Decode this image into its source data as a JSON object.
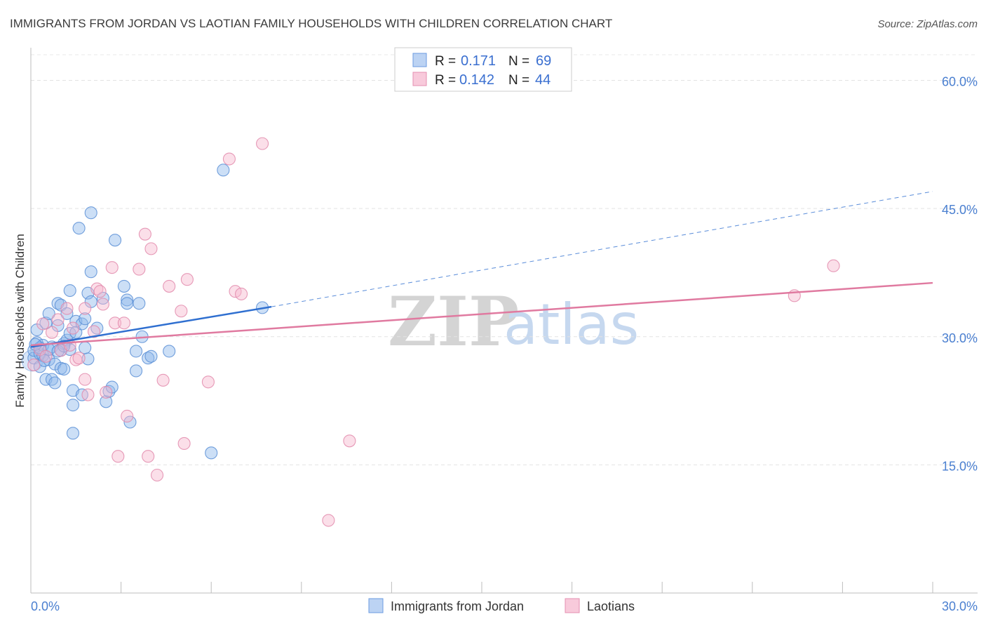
{
  "chart_data": {
    "type": "scatter",
    "title": "IMMIGRANTS FROM JORDAN VS LAOTIAN FAMILY HOUSEHOLDS WITH CHILDREN CORRELATION CHART",
    "source": "Source: ZipAtlas.com",
    "ylabel": "Family Households with Children",
    "xlabel": "",
    "xlim": [
      0,
      30
    ],
    "ylim": [
      0,
      63
    ],
    "x_tick_labels": [
      "0.0%",
      "30.0%"
    ],
    "y_ticks": [
      15,
      30,
      45,
      60
    ],
    "y_tick_labels": [
      "15.0%",
      "30.0%",
      "45.0%",
      "60.0%"
    ],
    "grid": true,
    "legend_position": "bottom-center",
    "stats_box": [
      {
        "r_label": "R =",
        "r_value": "0.171",
        "n_label": "N =",
        "n_value": "69"
      },
      {
        "r_label": "R =",
        "r_value": "0.142",
        "n_label": "N =",
        "n_value": "44"
      }
    ],
    "watermark": {
      "zip": "ZIP",
      "atlas": "atlas"
    },
    "series": [
      {
        "name": "Immigrants from Jordan",
        "color": "#8fb8ec",
        "edge": "#5b8fd6",
        "trend_color": "#2f6fd0",
        "trend": {
          "x0": 0,
          "y0": 28.8,
          "x1": 8,
          "y1": 33.5,
          "dash_to_x": 30,
          "dash_to_y": 47
        },
        "points": [
          [
            0.1,
            27.5
          ],
          [
            0.1,
            28.4
          ],
          [
            0.2,
            29.3
          ],
          [
            0.2,
            30.8
          ],
          [
            0.3,
            28.0
          ],
          [
            0.3,
            26.5
          ],
          [
            0.4,
            27.8
          ],
          [
            0.4,
            29.0
          ],
          [
            0.5,
            31.6
          ],
          [
            0.5,
            25.0
          ],
          [
            0.6,
            32.7
          ],
          [
            0.6,
            27.3
          ],
          [
            0.7,
            28.8
          ],
          [
            0.7,
            25.0
          ],
          [
            0.8,
            24.6
          ],
          [
            0.8,
            26.8
          ],
          [
            0.9,
            31.3
          ],
          [
            0.9,
            33.9
          ],
          [
            1.0,
            28.4
          ],
          [
            1.0,
            26.3
          ],
          [
            1.0,
            33.7
          ],
          [
            1.1,
            29.2
          ],
          [
            1.1,
            26.2
          ],
          [
            1.2,
            32.7
          ],
          [
            1.2,
            29.6
          ],
          [
            1.3,
            30.4
          ],
          [
            1.3,
            35.4
          ],
          [
            1.3,
            28.5
          ],
          [
            1.4,
            23.7
          ],
          [
            1.4,
            18.7
          ],
          [
            1.4,
            22.0
          ],
          [
            1.5,
            31.8
          ],
          [
            1.5,
            30.5
          ],
          [
            1.6,
            42.7
          ],
          [
            1.7,
            23.2
          ],
          [
            1.7,
            31.5
          ],
          [
            1.8,
            32.1
          ],
          [
            1.8,
            28.7
          ],
          [
            1.9,
            35.1
          ],
          [
            1.9,
            27.4
          ],
          [
            2.0,
            37.6
          ],
          [
            2.0,
            34.1
          ],
          [
            2.2,
            31.0
          ],
          [
            2.4,
            34.5
          ],
          [
            2.5,
            22.4
          ],
          [
            2.6,
            23.6
          ],
          [
            2.7,
            24.1
          ],
          [
            2.8,
            41.3
          ],
          [
            3.1,
            35.9
          ],
          [
            3.2,
            34.3
          ],
          [
            3.2,
            33.9
          ],
          [
            3.3,
            20.0
          ],
          [
            3.5,
            28.3
          ],
          [
            3.5,
            26.0
          ],
          [
            3.6,
            33.9
          ],
          [
            3.7,
            30.0
          ],
          [
            3.9,
            27.5
          ],
          [
            4.0,
            27.7
          ],
          [
            4.6,
            28.3
          ],
          [
            2.0,
            44.5
          ],
          [
            6.0,
            16.4
          ],
          [
            6.4,
            49.5
          ],
          [
            7.7,
            33.4
          ],
          [
            0.3,
            28.7
          ],
          [
            0.6,
            28.5
          ],
          [
            0.9,
            28.3
          ],
          [
            1.1,
            28.9
          ],
          [
            0.15,
            29.1
          ],
          [
            0.45,
            27.2
          ]
        ]
      },
      {
        "name": "Laotians",
        "color": "#f6b9cf",
        "edge": "#e28aab",
        "trend_color": "#e07aa0",
        "trend": {
          "x0": 0,
          "y0": 29.0,
          "x1": 30,
          "y1": 36.3
        },
        "points": [
          [
            0.1,
            26.7
          ],
          [
            0.3,
            28.5
          ],
          [
            0.4,
            31.5
          ],
          [
            0.5,
            27.7
          ],
          [
            0.7,
            30.5
          ],
          [
            0.9,
            32.0
          ],
          [
            1.0,
            28.4
          ],
          [
            1.2,
            33.3
          ],
          [
            1.3,
            29.0
          ],
          [
            1.4,
            31.0
          ],
          [
            1.5,
            27.3
          ],
          [
            1.6,
            27.5
          ],
          [
            1.8,
            33.3
          ],
          [
            1.8,
            25.0
          ],
          [
            1.9,
            23.2
          ],
          [
            2.1,
            30.6
          ],
          [
            2.2,
            35.6
          ],
          [
            2.3,
            35.3
          ],
          [
            2.4,
            33.8
          ],
          [
            2.5,
            23.5
          ],
          [
            2.7,
            38.1
          ],
          [
            2.8,
            31.6
          ],
          [
            2.9,
            16.0
          ],
          [
            3.1,
            31.6
          ],
          [
            3.2,
            20.7
          ],
          [
            3.6,
            37.9
          ],
          [
            3.8,
            42.0
          ],
          [
            3.9,
            16.0
          ],
          [
            4.0,
            40.3
          ],
          [
            4.2,
            13.8
          ],
          [
            4.4,
            24.9
          ],
          [
            4.6,
            35.9
          ],
          [
            5.0,
            33.0
          ],
          [
            5.1,
            17.5
          ],
          [
            5.2,
            36.7
          ],
          [
            5.9,
            24.7
          ],
          [
            6.8,
            35.3
          ],
          [
            7.0,
            35.0
          ],
          [
            6.6,
            50.8
          ],
          [
            7.7,
            52.6
          ],
          [
            10.6,
            17.8
          ],
          [
            9.9,
            8.5
          ],
          [
            25.4,
            34.8
          ],
          [
            26.7,
            38.3
          ]
        ]
      }
    ]
  }
}
